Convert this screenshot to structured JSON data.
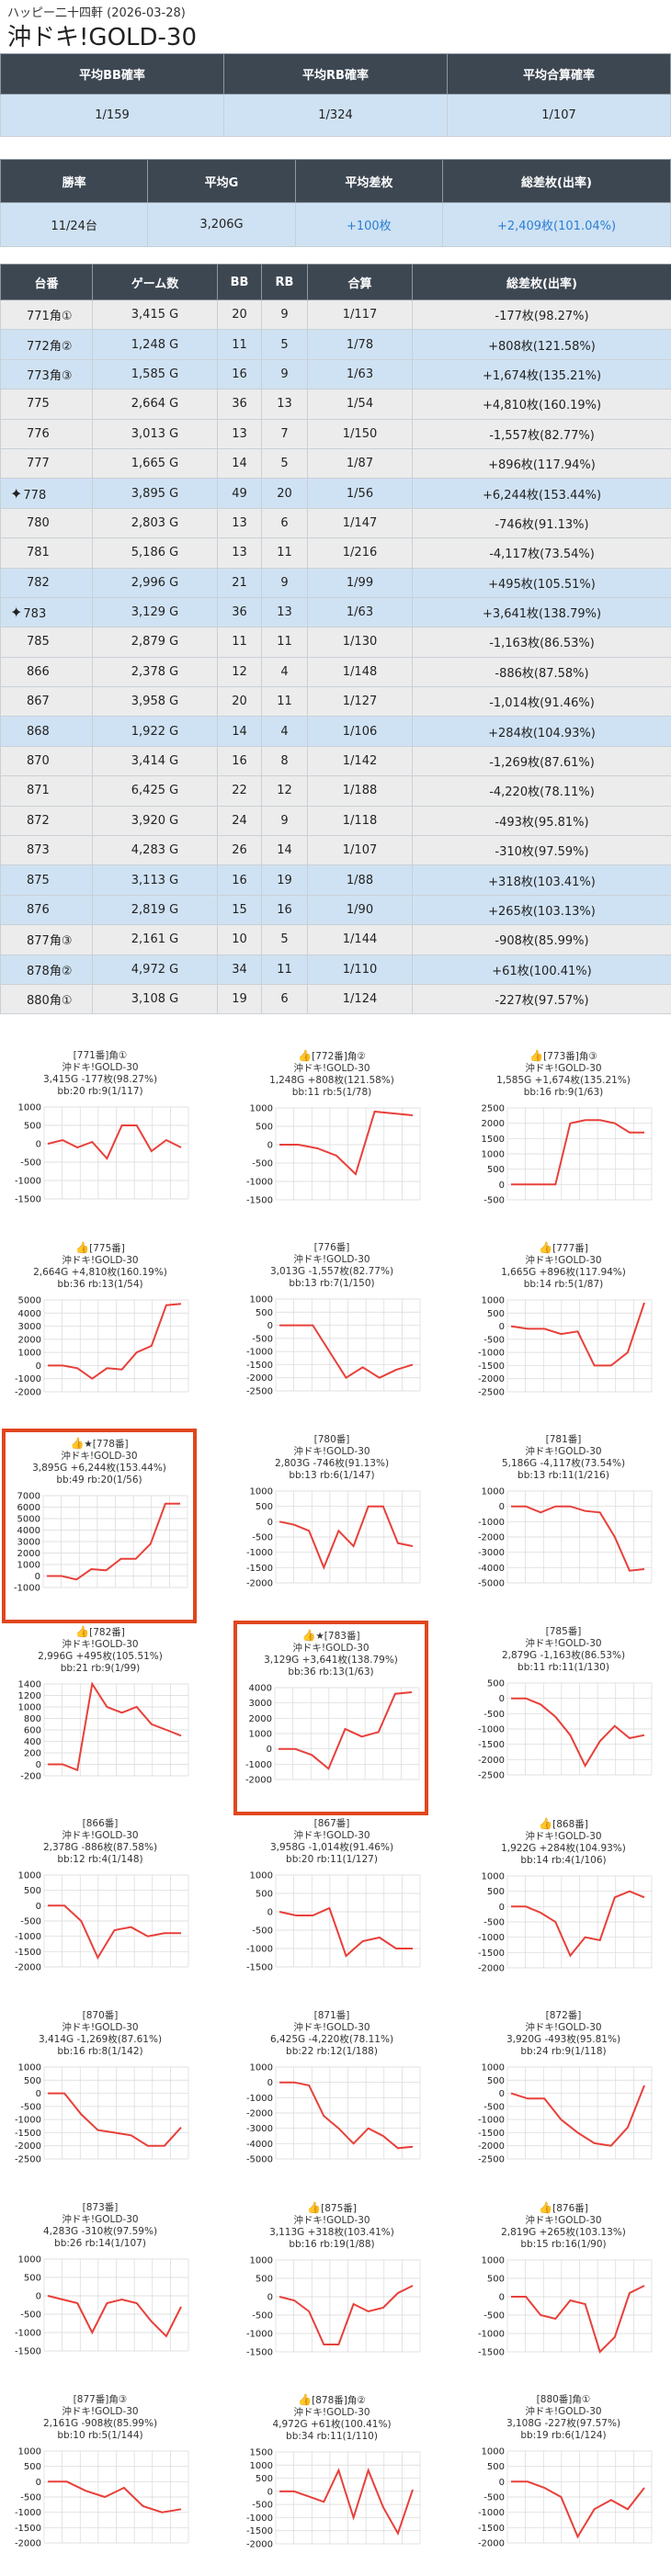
{
  "header": {
    "subtitle": "ハッピー二十四軒 (2026-03-28)",
    "title": "沖ドキ!GOLD-30"
  },
  "summary1": {
    "headers": [
      "平均BB確率",
      "平均RB確率",
      "平均合算確率"
    ],
    "values": [
      "1/159",
      "1/324",
      "1/107"
    ]
  },
  "summary2": {
    "headers": [
      "勝率",
      "平均G",
      "平均差枚",
      "総差枚(出率)"
    ],
    "values": [
      "11/24台",
      "3,206G",
      "+100枚",
      "+2,409枚(101.04%)"
    ]
  },
  "machines": {
    "headers": [
      "台番",
      "ゲーム数",
      "BB",
      "RB",
      "合算",
      "総差枚(出率)"
    ],
    "rows": [
      {
        "name": "771角①",
        "games": "3,415 G",
        "bb": "20",
        "rb": "9",
        "total": "1/117",
        "diff": "-177枚(98.27%)",
        "star": false
      },
      {
        "name": "772角②",
        "games": "1,248 G",
        "bb": "11",
        "rb": "5",
        "total": "1/78",
        "diff": "+808枚(121.58%)",
        "star": false
      },
      {
        "name": "773角③",
        "games": "1,585 G",
        "bb": "16",
        "rb": "9",
        "total": "1/63",
        "diff": "+1,674枚(135.21%)",
        "star": false
      },
      {
        "name": "775",
        "games": "2,664 G",
        "bb": "36",
        "rb": "13",
        "total": "1/54",
        "diff": "+4,810枚(160.19%)",
        "star": false
      },
      {
        "name": "776",
        "games": "3,013 G",
        "bb": "13",
        "rb": "7",
        "total": "1/150",
        "diff": "-1,557枚(82.77%)",
        "star": false
      },
      {
        "name": "777",
        "games": "1,665 G",
        "bb": "14",
        "rb": "5",
        "total": "1/87",
        "diff": "+896枚(117.94%)",
        "star": false
      },
      {
        "name": "778",
        "games": "3,895 G",
        "bb": "49",
        "rb": "20",
        "total": "1/56",
        "diff": "+6,244枚(153.44%)",
        "star": true
      },
      {
        "name": "780",
        "games": "2,803 G",
        "bb": "13",
        "rb": "6",
        "total": "1/147",
        "diff": "-746枚(91.13%)",
        "star": false
      },
      {
        "name": "781",
        "games": "5,186 G",
        "bb": "13",
        "rb": "11",
        "total": "1/216",
        "diff": "-4,117枚(73.54%)",
        "star": false
      },
      {
        "name": "782",
        "games": "2,996 G",
        "bb": "21",
        "rb": "9",
        "total": "1/99",
        "diff": "+495枚(105.51%)",
        "star": false
      },
      {
        "name": "783",
        "games": "3,129 G",
        "bb": "36",
        "rb": "13",
        "total": "1/63",
        "diff": "+3,641枚(138.79%)",
        "star": true
      },
      {
        "name": "785",
        "games": "2,879 G",
        "bb": "11",
        "rb": "11",
        "total": "1/130",
        "diff": "-1,163枚(86.53%)",
        "star": false
      },
      {
        "name": "866",
        "games": "2,378 G",
        "bb": "12",
        "rb": "4",
        "total": "1/148",
        "diff": "-886枚(87.58%)",
        "star": false
      },
      {
        "name": "867",
        "games": "3,958 G",
        "bb": "20",
        "rb": "11",
        "total": "1/127",
        "diff": "-1,014枚(91.46%)",
        "star": false
      },
      {
        "name": "868",
        "games": "1,922 G",
        "bb": "14",
        "rb": "4",
        "total": "1/106",
        "diff": "+284枚(104.93%)",
        "star": false
      },
      {
        "name": "870",
        "games": "3,414 G",
        "bb": "16",
        "rb": "8",
        "total": "1/142",
        "diff": "-1,269枚(87.61%)",
        "star": false
      },
      {
        "name": "871",
        "games": "6,425 G",
        "bb": "22",
        "rb": "12",
        "total": "1/188",
        "diff": "-4,220枚(78.11%)",
        "star": false
      },
      {
        "name": "872",
        "games": "3,920 G",
        "bb": "24",
        "rb": "9",
        "total": "1/118",
        "diff": "-493枚(95.81%)",
        "star": false
      },
      {
        "name": "873",
        "games": "4,283 G",
        "bb": "26",
        "rb": "14",
        "total": "1/107",
        "diff": "-310枚(97.59%)",
        "star": false
      },
      {
        "name": "875",
        "games": "3,113 G",
        "bb": "16",
        "rb": "19",
        "total": "1/88",
        "diff": "+318枚(103.41%)",
        "star": false
      },
      {
        "name": "876",
        "games": "2,819 G",
        "bb": "15",
        "rb": "16",
        "total": "1/90",
        "diff": "+265枚(103.13%)",
        "star": false
      },
      {
        "name": "877角③",
        "games": "2,161 G",
        "bb": "10",
        "rb": "5",
        "total": "1/144",
        "diff": "-908枚(85.99%)",
        "star": false
      },
      {
        "name": "878角②",
        "games": "4,972 G",
        "bb": "34",
        "rb": "11",
        "total": "1/110",
        "diff": "+61枚(100.41%)",
        "star": false
      },
      {
        "name": "880角①",
        "games": "3,108 G",
        "bb": "19",
        "rb": "6",
        "total": "1/124",
        "diff": "-227枚(97.57%)",
        "star": false
      }
    ]
  },
  "colors": {
    "header_bg": "#3d4752",
    "row_blue": "#cfe2f3",
    "row_gray": "#ececec",
    "line_red": "#e8403a",
    "highlight": "#e0461e"
  },
  "cards": [
    {
      "label": "[771番]角①",
      "model": "沖ドキ!GOLD-30",
      "stats": "3,415G -177枚(98.27%)",
      "probs": "bb:20 rb:9(1/117)",
      "thumb": false,
      "ticks": [
        "1000",
        "500",
        "0",
        "-500",
        "-1000",
        "-1500"
      ],
      "values": [
        0,
        100,
        -100,
        50,
        -400,
        500,
        500,
        -200,
        100,
        -100
      ]
    },
    {
      "label": "[772番]角②",
      "model": "沖ドキ!GOLD-30",
      "stats": "1,248G +808枚(121.58%)",
      "probs": "bb:11 rb:5(1/78)",
      "thumb": true,
      "ticks": [
        "1000",
        "500",
        "0",
        "-500",
        "-1000",
        "-1500"
      ],
      "values": [
        0,
        0,
        -100,
        -300,
        -800,
        900,
        850,
        800
      ]
    },
    {
      "label": "[773番]角③",
      "model": "沖ドキ!GOLD-30",
      "stats": "1,585G +1,674枚(135.21%)",
      "probs": "bb:16 rb:9(1/63)",
      "thumb": true,
      "ticks": [
        "2500",
        "2000",
        "1500",
        "1000",
        "500",
        "0",
        "-500"
      ],
      "values": [
        0,
        0,
        0,
        0,
        2000,
        2100,
        2100,
        2000,
        1700,
        1700
      ]
    },
    {
      "label": "[775番]",
      "model": "沖ドキ!GOLD-30",
      "stats": "2,664G +4,810枚(160.19%)",
      "probs": "bb:36 rb:13(1/54)",
      "thumb": true,
      "ticks": [
        "5000",
        "4000",
        "3000",
        "2000",
        "1000",
        "0",
        "-1000",
        "-2000"
      ],
      "values": [
        0,
        0,
        -200,
        -1000,
        -200,
        -300,
        1000,
        1500,
        4600,
        4700
      ]
    },
    {
      "label": "[776番]",
      "model": "沖ドキ!GOLD-30",
      "stats": "3,013G -1,557枚(82.77%)",
      "probs": "bb:13 rb:7(1/150)",
      "thumb": false,
      "ticks": [
        "1000",
        "500",
        "0",
        "-500",
        "-1000",
        "-1500",
        "-2000",
        "-2500"
      ],
      "values": [
        0,
        0,
        0,
        -1000,
        -2000,
        -1600,
        -2000,
        -1700,
        -1500
      ]
    },
    {
      "label": "[777番]",
      "model": "沖ドキ!GOLD-30",
      "stats": "1,665G +896枚(117.94%)",
      "probs": "bb:14 rb:5(1/87)",
      "thumb": true,
      "ticks": [
        "1000",
        "500",
        "0",
        "-500",
        "-1000",
        "-1500",
        "-2000",
        "-2500"
      ],
      "values": [
        0,
        -100,
        -100,
        -300,
        -200,
        -1500,
        -1500,
        -1000,
        900
      ]
    },
    {
      "label": "★[778番]",
      "model": "沖ドキ!GOLD-30",
      "stats": "3,895G +6,244枚(153.44%)",
      "probs": "bb:49 rb:20(1/56)",
      "thumb": true,
      "ticks": [
        "7000",
        "6000",
        "5000",
        "4000",
        "3000",
        "2000",
        "1000",
        "0",
        "-1000"
      ],
      "values": [
        0,
        0,
        -300,
        600,
        500,
        1500,
        1500,
        2800,
        6300,
        6300
      ]
    },
    {
      "label": "[780番]",
      "model": "沖ドキ!GOLD-30",
      "stats": "2,803G -746枚(91.13%)",
      "probs": "bb:13 rb:6(1/147)",
      "thumb": false,
      "ticks": [
        "1000",
        "500",
        "0",
        "-500",
        "-1000",
        "-1500",
        "-2000"
      ],
      "values": [
        0,
        -100,
        -300,
        -1500,
        -300,
        -800,
        500,
        500,
        -700,
        -800
      ]
    },
    {
      "label": "[781番]",
      "model": "沖ドキ!GOLD-30",
      "stats": "5,186G -4,117枚(73.54%)",
      "probs": "bb:13 rb:11(1/216)",
      "thumb": false,
      "ticks": [
        "1000",
        "0",
        "-1000",
        "-2000",
        "-3000",
        "-4000",
        "-5000"
      ],
      "values": [
        0,
        0,
        -400,
        0,
        0,
        -300,
        -400,
        -2000,
        -4200,
        -4100
      ]
    },
    {
      "label": "[782番]",
      "model": "沖ドキ!GOLD-30",
      "stats": "2,996G +495枚(105.51%)",
      "probs": "bb:21 rb:9(1/99)",
      "thumb": true,
      "ticks": [
        "1400",
        "1200",
        "1000",
        "800",
        "600",
        "400",
        "200",
        "0",
        "-200"
      ],
      "values": [
        0,
        0,
        -100,
        1400,
        1000,
        900,
        1000,
        700,
        600,
        500
      ]
    },
    {
      "label": "★[783番]",
      "model": "沖ドキ!GOLD-30",
      "stats": "3,129G +3,641枚(138.79%)",
      "probs": "bb:36 rb:13(1/63)",
      "thumb": true,
      "ticks": [
        "4000",
        "3000",
        "2000",
        "1000",
        "0",
        "-1000",
        "-2000"
      ],
      "values": [
        0,
        0,
        -400,
        -1300,
        1300,
        800,
        1100,
        3600,
        3700
      ]
    },
    {
      "label": "[785番]",
      "model": "沖ドキ!GOLD-30",
      "stats": "2,879G -1,163枚(86.53%)",
      "probs": "bb:11 rb:11(1/130)",
      "thumb": false,
      "ticks": [
        "500",
        "0",
        "-500",
        "-1000",
        "-1500",
        "-2000",
        "-2500"
      ],
      "values": [
        0,
        0,
        -200,
        -600,
        -1200,
        -2200,
        -1400,
        -900,
        -1300,
        -1200
      ]
    },
    {
      "label": "[866番]",
      "model": "沖ドキ!GOLD-30",
      "stats": "2,378G -886枚(87.58%)",
      "probs": "bb:12 rb:4(1/148)",
      "thumb": false,
      "ticks": [
        "1000",
        "500",
        "0",
        "-500",
        "-1000",
        "-1500",
        "-2000"
      ],
      "values": [
        0,
        0,
        -500,
        -1700,
        -800,
        -700,
        -1000,
        -900,
        -900
      ]
    },
    {
      "label": "[867番]",
      "model": "沖ドキ!GOLD-30",
      "stats": "3,958G -1,014枚(91.46%)",
      "probs": "bb:20 rb:11(1/127)",
      "thumb": false,
      "ticks": [
        "1000",
        "500",
        "0",
        "-500",
        "-1000",
        "-1500"
      ],
      "values": [
        0,
        -100,
        -100,
        100,
        -1200,
        -800,
        -700,
        -1000,
        -1000
      ]
    },
    {
      "label": "[868番]",
      "model": "沖ドキ!GOLD-30",
      "stats": "1,922G +284枚(104.93%)",
      "probs": "bb:14 rb:4(1/106)",
      "thumb": true,
      "ticks": [
        "1000",
        "500",
        "0",
        "-500",
        "-1000",
        "-1500",
        "-2000"
      ],
      "values": [
        0,
        0,
        -200,
        -500,
        -1600,
        -1000,
        -1100,
        300,
        500,
        300
      ]
    },
    {
      "label": "[870番]",
      "model": "沖ドキ!GOLD-30",
      "stats": "3,414G -1,269枚(87.61%)",
      "probs": "bb:16 rb:8(1/142)",
      "thumb": false,
      "ticks": [
        "1000",
        "500",
        "0",
        "-500",
        "-1000",
        "-1500",
        "-2000",
        "-2500"
      ],
      "values": [
        0,
        0,
        -800,
        -1400,
        -1500,
        -1600,
        -2000,
        -2000,
        -1300
      ]
    },
    {
      "label": "[871番]",
      "model": "沖ドキ!GOLD-30",
      "stats": "6,425G -4,220枚(78.11%)",
      "probs": "bb:22 rb:12(1/188)",
      "thumb": false,
      "ticks": [
        "1000",
        "0",
        "-1000",
        "-2000",
        "-3000",
        "-4000",
        "-5000"
      ],
      "values": [
        0,
        0,
        -200,
        -2200,
        -3000,
        -4000,
        -3000,
        -3500,
        -4300,
        -4200
      ]
    },
    {
      "label": "[872番]",
      "model": "沖ドキ!GOLD-30",
      "stats": "3,920G -493枚(95.81%)",
      "probs": "bb:24 rb:9(1/118)",
      "thumb": false,
      "ticks": [
        "1000",
        "500",
        "0",
        "-500",
        "-1000",
        "-1500",
        "-2000",
        "-2500"
      ],
      "values": [
        0,
        -200,
        -200,
        -1000,
        -1500,
        -1900,
        -2000,
        -1300,
        300
      ]
    },
    {
      "label": "[873番]",
      "model": "沖ドキ!GOLD-30",
      "stats": "4,283G -310枚(97.59%)",
      "probs": "bb:26 rb:14(1/107)",
      "thumb": false,
      "ticks": [
        "1000",
        "500",
        "0",
        "-500",
        "-1000",
        "-1500"
      ],
      "values": [
        0,
        -100,
        -200,
        -1000,
        -200,
        -100,
        -200,
        -700,
        -1100,
        -300
      ]
    },
    {
      "label": "[875番]",
      "model": "沖ドキ!GOLD-30",
      "stats": "3,113G +318枚(103.41%)",
      "probs": "bb:16 rb:19(1/88)",
      "thumb": true,
      "ticks": [
        "1000",
        "500",
        "0",
        "-500",
        "-1000",
        "-1500"
      ],
      "values": [
        0,
        -100,
        -400,
        -1300,
        -1300,
        -200,
        -400,
        -300,
        100,
        300
      ]
    },
    {
      "label": "[876番]",
      "model": "沖ドキ!GOLD-30",
      "stats": "2,819G +265枚(103.13%)",
      "probs": "bb:15 rb:16(1/90)",
      "thumb": true,
      "ticks": [
        "1000",
        "500",
        "0",
        "-500",
        "-1000",
        "-1500"
      ],
      "values": [
        0,
        0,
        -500,
        -600,
        -100,
        -200,
        -1500,
        -1100,
        100,
        300
      ]
    },
    {
      "label": "[877番]角③",
      "model": "沖ドキ!GOLD-30",
      "stats": "2,161G -908枚(85.99%)",
      "probs": "bb:10 rb:5(1/144)",
      "thumb": false,
      "ticks": [
        "1000",
        "500",
        "0",
        "-500",
        "-1000",
        "-1500",
        "-2000"
      ],
      "values": [
        0,
        0,
        -300,
        -500,
        -200,
        -800,
        -1000,
        -900
      ]
    },
    {
      "label": "[878番]角②",
      "model": "沖ドキ!GOLD-30",
      "stats": "4,972G +61枚(100.41%)",
      "probs": "bb:34 rb:11(1/110)",
      "thumb": true,
      "ticks": [
        "1500",
        "1000",
        "500",
        "0",
        "-500",
        "-1000",
        "-1500",
        "-2000"
      ],
      "values": [
        0,
        0,
        -200,
        -400,
        800,
        -1000,
        800,
        -600,
        -1600,
        60
      ]
    },
    {
      "label": "[880番]角①",
      "model": "沖ドキ!GOLD-30",
      "stats": "3,108G -227枚(97.57%)",
      "probs": "bb:19 rb:6(1/124)",
      "thumb": false,
      "ticks": [
        "1000",
        "500",
        "0",
        "-500",
        "-1000",
        "-1500",
        "-2000"
      ],
      "values": [
        0,
        0,
        -200,
        -500,
        -1800,
        -900,
        -600,
        -900,
        -200
      ]
    }
  ]
}
